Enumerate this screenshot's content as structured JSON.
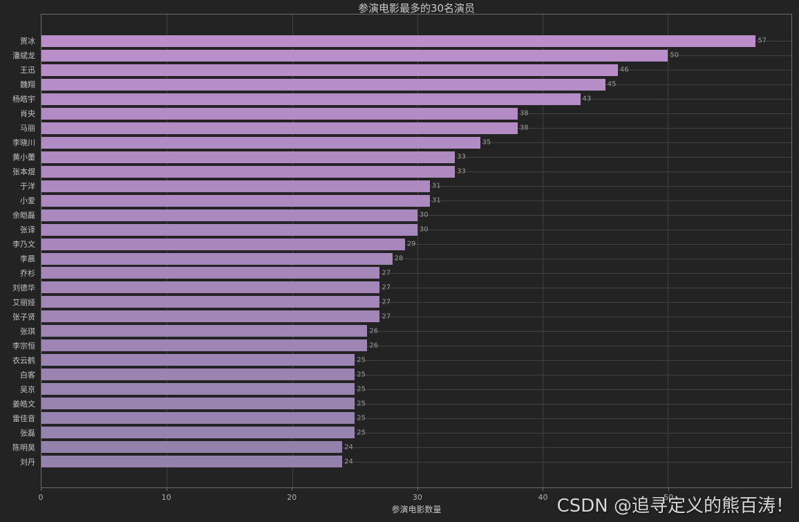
{
  "watermark": {
    "text": "CSDN @追寻定义的熊百涛！"
  },
  "chart_data": {
    "type": "bar",
    "orientation": "horizontal",
    "title": "参演电影最多的30名演员",
    "xlabel": "参演电影数量",
    "ylabel": "",
    "categories": [
      "贾冰",
      "潘斌龙",
      "王迅",
      "魏翔",
      "杨皓宇",
      "肖央",
      "马丽",
      "李晓川",
      "黄小蕾",
      "张本煜",
      "于洋",
      "小爱",
      "余皑磊",
      "张译",
      "李乃文",
      "李晨",
      "乔杉",
      "刘德华",
      "艾丽娅",
      "张子贤",
      "张琪",
      "李宗恒",
      "衣云鹤",
      "白客",
      "吴京",
      "姜皓文",
      "雷佳音",
      "张磊",
      "陈明昊",
      "刘丹"
    ],
    "values": [
      57,
      50,
      46,
      45,
      43,
      38,
      38,
      35,
      33,
      33,
      31,
      31,
      30,
      30,
      29,
      28,
      27,
      27,
      27,
      27,
      26,
      26,
      25,
      25,
      25,
      25,
      25,
      25,
      24,
      24
    ],
    "xticks": [
      0,
      10,
      20,
      30,
      40,
      50
    ],
    "xlim": [
      0,
      59.85
    ],
    "grid": true,
    "legend": false,
    "background_color": "#232323",
    "grid_color": "#424242",
    "spine_color": "#6e6e6e",
    "bar_color_top": "#bb8eca",
    "bar_color_bottom": "#9382ac",
    "title_color": "#cacaca",
    "tick_label_color": "#b2b2b2",
    "value_label_color": "#9b9b9b"
  }
}
